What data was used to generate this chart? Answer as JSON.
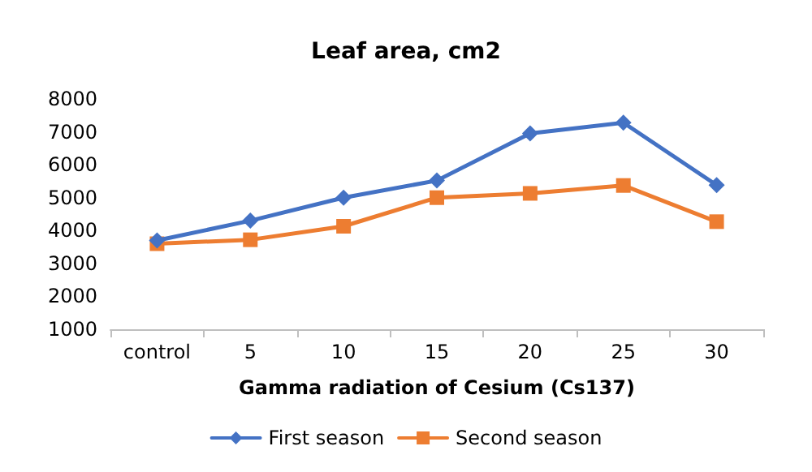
{
  "chart_data": {
    "type": "line",
    "title": "Leaf area, cm2",
    "xlabel": "Gamma radiation of Cesium (Cs137)",
    "categories": [
      "control",
      "5",
      "10",
      "15",
      "20",
      "25",
      "30"
    ],
    "series": [
      {
        "name": "First season",
        "color": "#4472c4",
        "marker": "diamond",
        "values": [
          3700,
          4300,
          5000,
          5520,
          6950,
          7280,
          5380
        ]
      },
      {
        "name": "Second season",
        "color": "#ed7d31",
        "marker": "square",
        "values": [
          3600,
          3720,
          4130,
          5000,
          5130,
          5370,
          4270
        ]
      }
    ],
    "ylim": [
      1000,
      8000
    ],
    "yticks": [
      1000,
      2000,
      3000,
      4000,
      5000,
      6000,
      7000,
      8000
    ],
    "grid": false,
    "legend": "bottom",
    "line_style": "solid"
  }
}
